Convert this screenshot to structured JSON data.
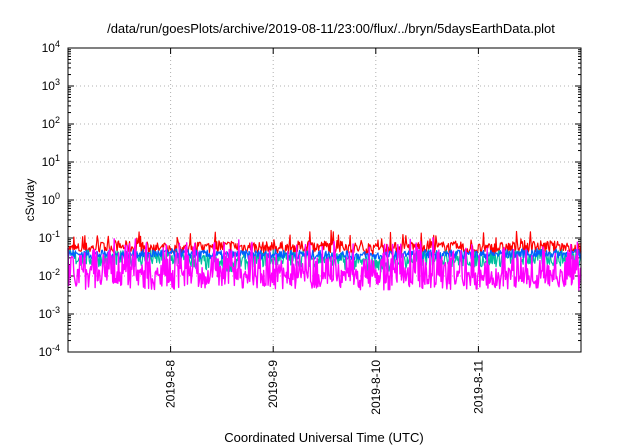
{
  "chart_data": {
    "type": "line",
    "title": "/data/run/goesPlots/archive/2019-08-11/23:00/flux/../bryn/5daysEarthData.plot",
    "xlabel": "Coordinated Universal Time (UTC)",
    "ylabel": "cSv/day",
    "y_scale": "log",
    "ylim": [
      0.0001,
      10000
    ],
    "y_ticks": [
      {
        "value": 0.0001,
        "base": "10",
        "exp": "-4"
      },
      {
        "value": 0.001,
        "base": "10",
        "exp": "-3"
      },
      {
        "value": 0.01,
        "base": "10",
        "exp": "-2"
      },
      {
        "value": 0.1,
        "base": "10",
        "exp": "-1"
      },
      {
        "value": 1,
        "base": "10",
        "exp": "0"
      },
      {
        "value": 10,
        "base": "10",
        "exp": "1"
      },
      {
        "value": 100,
        "base": "10",
        "exp": "2"
      },
      {
        "value": 1000,
        "base": "10",
        "exp": "3"
      },
      {
        "value": 10000,
        "base": "10",
        "exp": "4"
      }
    ],
    "xlim": [
      "2019-08-07T00:00",
      "2019-08-12T00:00"
    ],
    "x_ticks": [
      {
        "value": "2019-08-08T00:00",
        "label": "2019-8-8"
      },
      {
        "value": "2019-08-09T00:00",
        "label": "2019-8-9"
      },
      {
        "value": "2019-08-10T00:00",
        "label": "2019-8-10"
      },
      {
        "value": "2019-08-11T00:00",
        "label": "2019-8-11"
      }
    ],
    "grid": true,
    "x": [
      "2019-08-07T00:00",
      "2019-08-07T12:00",
      "2019-08-08T00:00",
      "2019-08-08T12:00",
      "2019-08-09T00:00",
      "2019-08-09T12:00",
      "2019-08-10T00:00",
      "2019-08-10T12:00",
      "2019-08-11T00:00",
      "2019-08-11T12:00",
      "2019-08-12T00:00"
    ],
    "series": [
      {
        "color": "#ff0000",
        "values": [
          0.05,
          0.06,
          0.05,
          0.06,
          0.055,
          0.06,
          0.05,
          0.06,
          0.05,
          0.06,
          0.055
        ]
      },
      {
        "color": "#00c0a0",
        "values": [
          0.03,
          0.028,
          0.03,
          0.02,
          0.03,
          0.028,
          0.02,
          0.03,
          0.028,
          0.03,
          0.03
        ]
      },
      {
        "color": "#0060ff",
        "values": [
          0.038,
          0.036,
          0.04,
          0.035,
          0.038,
          0.036,
          0.034,
          0.038,
          0.036,
          0.04,
          0.038
        ]
      },
      {
        "color": "#ff00ff",
        "values": [
          0.008,
          0.009,
          0.008,
          0.01,
          0.008,
          0.009,
          0.008,
          0.009,
          0.008,
          0.009,
          0.008
        ]
      }
    ]
  }
}
